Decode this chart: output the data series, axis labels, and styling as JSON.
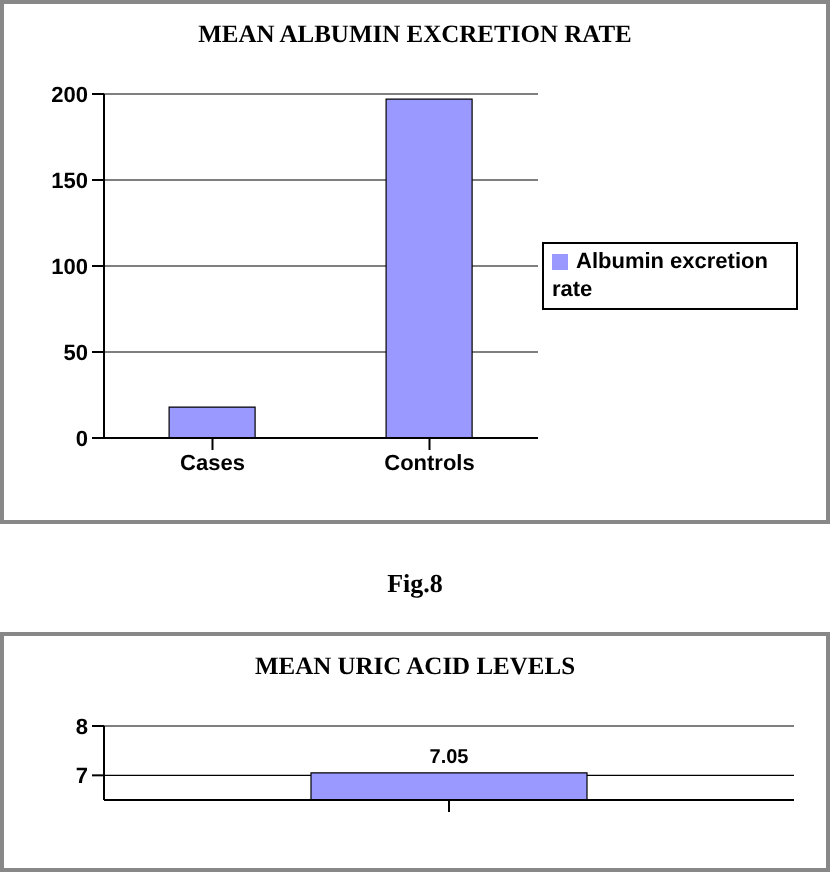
{
  "chart_data": [
    {
      "type": "bar",
      "title": "MEAN ALBUMIN EXCRETION RATE",
      "categories": [
        "Cases",
        "Controls"
      ],
      "series": [
        {
          "name": "Albumin excretion rate",
          "color": "#9999ff",
          "values": [
            18,
            197
          ]
        }
      ],
      "ylim": [
        0,
        200
      ],
      "yticks": [
        0,
        50,
        100,
        150,
        200
      ],
      "grid": "y",
      "legend": "right",
      "annotations": [
        "Fig.8"
      ]
    },
    {
      "type": "bar",
      "title": "MEAN URIC ACID LEVELS",
      "categories": [
        null
      ],
      "series": [
        {
          "color": "#9999ff",
          "values": [
            7.05
          ]
        }
      ],
      "ylim": [
        6.5,
        8
      ],
      "yticks": [
        7,
        8
      ],
      "grid": "y",
      "data_labels": true
    }
  ]
}
